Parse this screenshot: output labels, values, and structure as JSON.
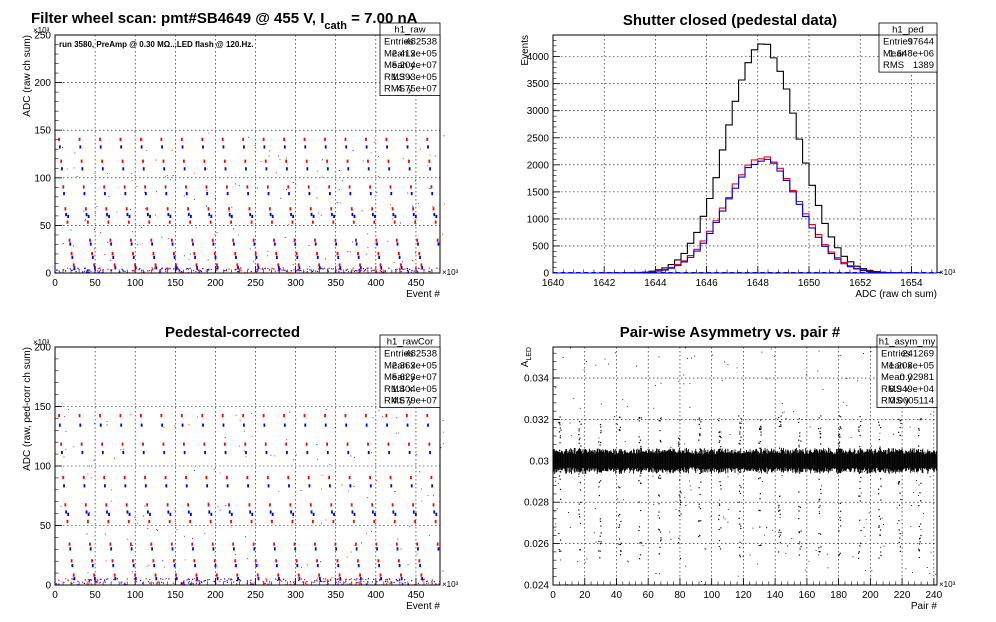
{
  "figure_title": {
    "main": "Filter wheel scan: pmt#SB4649 @   455 V, I",
    "sub": "cath",
    "tail": " = 7.00 nA"
  },
  "chart_data": [
    {
      "type": "scatter",
      "id": "p1",
      "title": "",
      "annotation": "run 3580, PreAmp @ 0.30 MΩ...LED flash @  120.Hz.",
      "xlabel": "Event #",
      "ylabel": "ADC (raw ch sum)",
      "x_multiplier": "×10³",
      "y_multiplier": "×10³",
      "xlim": [
        0,
        480
      ],
      "ylim": [
        0,
        250
      ],
      "x_ticks": [
        0,
        50,
        100,
        150,
        200,
        250,
        300,
        350,
        400,
        450
      ],
      "y_ticks": [
        0,
        50,
        100,
        150,
        200,
        250
      ],
      "grid": true,
      "stats": {
        "name": "h1_raw",
        "rows": [
          {
            "k": "Entries",
            "v": "482538"
          },
          {
            "k": "Mean x",
            "v": "2.413e+05"
          },
          {
            "k": "Mean y",
            "v": "5.204e+07"
          },
          {
            "k": "RMS x",
            "v": "1.393e+05"
          },
          {
            "k": "RMS y",
            "v": "4.75e+07"
          }
        ]
      },
      "pattern": {
        "period": 25.5,
        "levels": [
          {
            "y": 140,
            "dy": -8
          },
          {
            "y": 117,
            "dy": -8
          },
          {
            "y": 90,
            "dy": -7
          },
          {
            "y": 67,
            "dy": -6
          },
          {
            "y": 53,
            "dy": 6
          },
          {
            "y": 34,
            "dy": -4
          },
          {
            "y": 20,
            "dy": -4
          },
          {
            "y": 8,
            "dy": -3
          }
        ],
        "colors": [
          "#ff0000",
          "#0000ff"
        ]
      }
    },
    {
      "type": "line",
      "id": "p2",
      "title": "Shutter closed (pedestal data)",
      "xlabel": "ADC (raw ch sum)",
      "ylabel": "Events",
      "x_multiplier": "×10³",
      "xlim": [
        1640,
        1655
      ],
      "ylim": [
        0,
        4400
      ],
      "x_ticks": [
        1640,
        1642,
        1644,
        1646,
        1648,
        1650,
        1652,
        1654
      ],
      "y_ticks": [
        0,
        500,
        1000,
        1500,
        2000,
        2500,
        3000,
        3500,
        4000
      ],
      "grid": true,
      "stats": {
        "name": "h1_ped",
        "rows": [
          {
            "k": "Entries",
            "v": "97644"
          },
          {
            "k": "Mean",
            "v": "1.648e+06"
          },
          {
            "k": "RMS",
            "v": "1389"
          }
        ]
      },
      "series": [
        {
          "color": "#000000",
          "peak": 4250,
          "mean": 1648.2,
          "sigma": 1.39
        },
        {
          "color": "#ff0000",
          "peak": 2150,
          "mean": 1648.2,
          "sigma": 1.45
        },
        {
          "color": "#0000ff",
          "peak": 2100,
          "mean": 1648.2,
          "sigma": 1.42
        }
      ]
    },
    {
      "type": "scatter",
      "id": "p3",
      "title": "Pedestal-corrected",
      "xlabel": "Event #",
      "ylabel": "ADC (raw, ped-corr ch sum)",
      "x_multiplier": "×10³",
      "y_multiplier": "×10³",
      "xlim": [
        0,
        480
      ],
      "ylim": [
        0,
        200
      ],
      "x_ticks": [
        0,
        50,
        100,
        150,
        200,
        250,
        300,
        350,
        400,
        450
      ],
      "y_ticks": [
        0,
        50,
        100,
        150,
        200
      ],
      "grid": true,
      "stats": {
        "name": "h1_rawCor",
        "rows": [
          {
            "k": "Entries",
            "v": "482538"
          },
          {
            "k": "Mean x",
            "v": "2.363e+05"
          },
          {
            "k": "Mean y",
            "v": "5.623e+07"
          },
          {
            "k": "RMS x",
            "v": "1.404e+05"
          },
          {
            "k": "RMS y",
            "v": "4.679e+07"
          }
        ]
      },
      "pattern": {
        "period": 25.5,
        "levels": [
          {
            "y": 142,
            "dy": -8
          },
          {
            "y": 118,
            "dy": -7
          },
          {
            "y": 90,
            "dy": -7
          },
          {
            "y": 67,
            "dy": -6
          },
          {
            "y": 53,
            "dy": 6
          },
          {
            "y": 34,
            "dy": -4
          },
          {
            "y": 20,
            "dy": -4
          },
          {
            "y": 8,
            "dy": -3
          }
        ],
        "colors": [
          "#ff0000",
          "#0000ff"
        ]
      }
    },
    {
      "type": "scatter",
      "id": "p4",
      "title": "Pair-wise Asymmetry vs. pair #",
      "xlabel": "Pair #",
      "ylabel": "A",
      "ylabel_sub": "LED",
      "x_multiplier": "×10³",
      "xlim": [
        0,
        242
      ],
      "ylim": [
        0.024,
        0.0355
      ],
      "x_ticks": [
        0,
        20,
        40,
        60,
        80,
        100,
        120,
        140,
        160,
        180,
        200,
        220,
        240
      ],
      "y_ticks": [
        0.024,
        0.026,
        0.028,
        0.03,
        0.032,
        0.034
      ],
      "y_tick_labels": [
        "0.024",
        "0.026",
        "0.028",
        "0.03",
        "0.032",
        "0.034"
      ],
      "grid": true,
      "stats": {
        "name": "h1_asym_my",
        "rows": [
          {
            "k": "Entries",
            "v": "241269"
          },
          {
            "k": "Mean x",
            "v": "1.208e+05"
          },
          {
            "k": "Mean y",
            "v": "0.02981"
          },
          {
            "k": "RMS x",
            "v": "6.949e+04"
          },
          {
            "k": "RMS y",
            "v": "0.0005114"
          }
        ]
      },
      "band": {
        "center": 0.03,
        "half_width": 0.00045,
        "spike_period": 12.6,
        "spike_top": 0.0322,
        "spike_bottom": 0.0253
      }
    }
  ]
}
